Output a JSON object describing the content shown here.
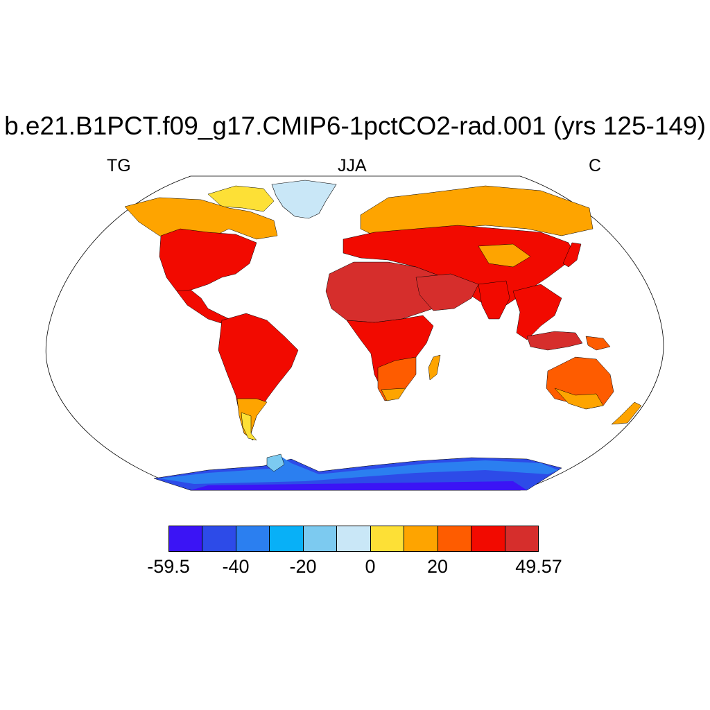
{
  "title": "b.e21.B1PCT.f09_g17.CMIP6-1pctCO2-rad.001 (yrs 125-149)",
  "subtitle_left": "TG",
  "subtitle_center": "JJA",
  "subtitle_right": "C",
  "colorbar": {
    "colors": [
      "#3b14f5",
      "#2d4be8",
      "#2b7ff0",
      "#08b0f7",
      "#7ccaf0",
      "#c9e7f7",
      "#fde036",
      "#fea400",
      "#fe5c00",
      "#f20a00",
      "#d62e2c"
    ],
    "labels": [
      {
        "text": "-59.5",
        "value": -59.5
      },
      {
        "text": "-40",
        "value": -40
      },
      {
        "text": "-20",
        "value": -20
      },
      {
        "text": "0",
        "value": 0
      },
      {
        "text": "20",
        "value": 20
      },
      {
        "text": "49.57",
        "value": 49.57
      }
    ],
    "min": -59.5,
    "max": 49.57
  },
  "map": {
    "projection": "robinson",
    "variable": "surface temperature (land)",
    "regions": [
      {
        "name": "greenland",
        "color": "#c9e7f7"
      },
      {
        "name": "antarctica",
        "color": "#2d4be8"
      },
      {
        "name": "sahara-arabia",
        "color": "#d62e2c"
      }
    ]
  }
}
